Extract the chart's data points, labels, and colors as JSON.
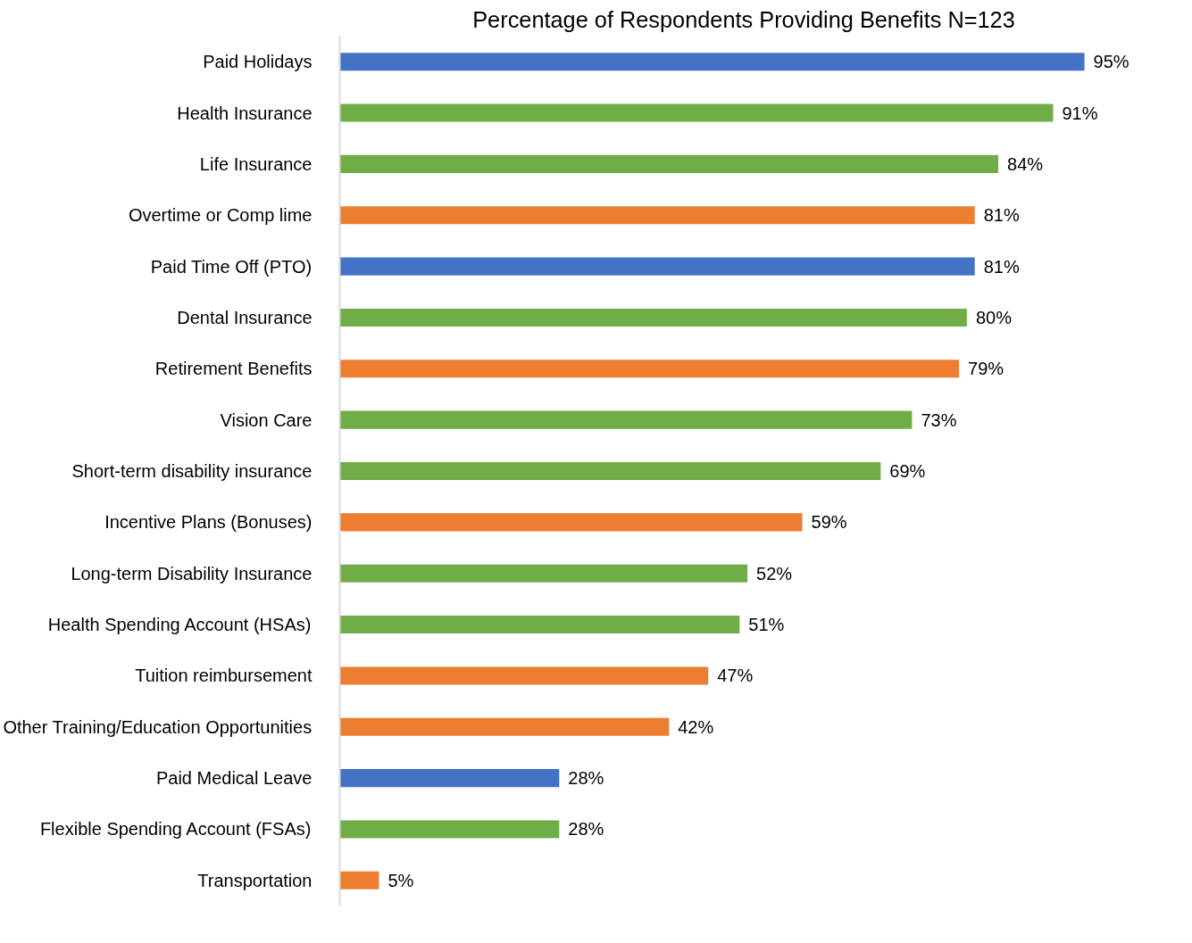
{
  "chart_data": {
    "type": "bar",
    "orientation": "horizontal",
    "title": "Percentage of Respondents Providing Benefits N=123",
    "categories": [
      "Paid Holidays",
      "Health Insurance",
      "Life Insurance",
      "Overtime or Comp lime",
      "Paid Time Off (PTO)",
      "Dental Insurance",
      "Retirement Benefits",
      "Vision Care",
      "Short-term disability insurance",
      "Incentive Plans (Bonuses)",
      "Long-term Disability Insurance",
      "Health Spending Account (HSAs)",
      "Tuition reimbursement",
      "Other Training/Education Opportunities",
      "Paid Medical Leave",
      "Flexible Spending Account (FSAs)",
      "Transportation"
    ],
    "values": [
      95,
      91,
      84,
      81,
      81,
      80,
      79,
      73,
      69,
      59,
      52,
      51,
      47,
      42,
      28,
      28,
      5
    ],
    "value_labels": [
      "95%",
      "91%",
      "84%",
      "81%",
      "81%",
      "80%",
      "79%",
      "73%",
      "69%",
      "59%",
      "52%",
      "51%",
      "47%",
      "42%",
      "28%",
      "28%",
      "5%"
    ],
    "colors": [
      "#4472c4",
      "#70ad47",
      "#70ad47",
      "#ed7d31",
      "#4472c4",
      "#70ad47",
      "#ed7d31",
      "#70ad47",
      "#70ad47",
      "#ed7d31",
      "#70ad47",
      "#70ad47",
      "#ed7d31",
      "#ed7d31",
      "#4472c4",
      "#70ad47",
      "#ed7d31"
    ],
    "grid": false
  }
}
